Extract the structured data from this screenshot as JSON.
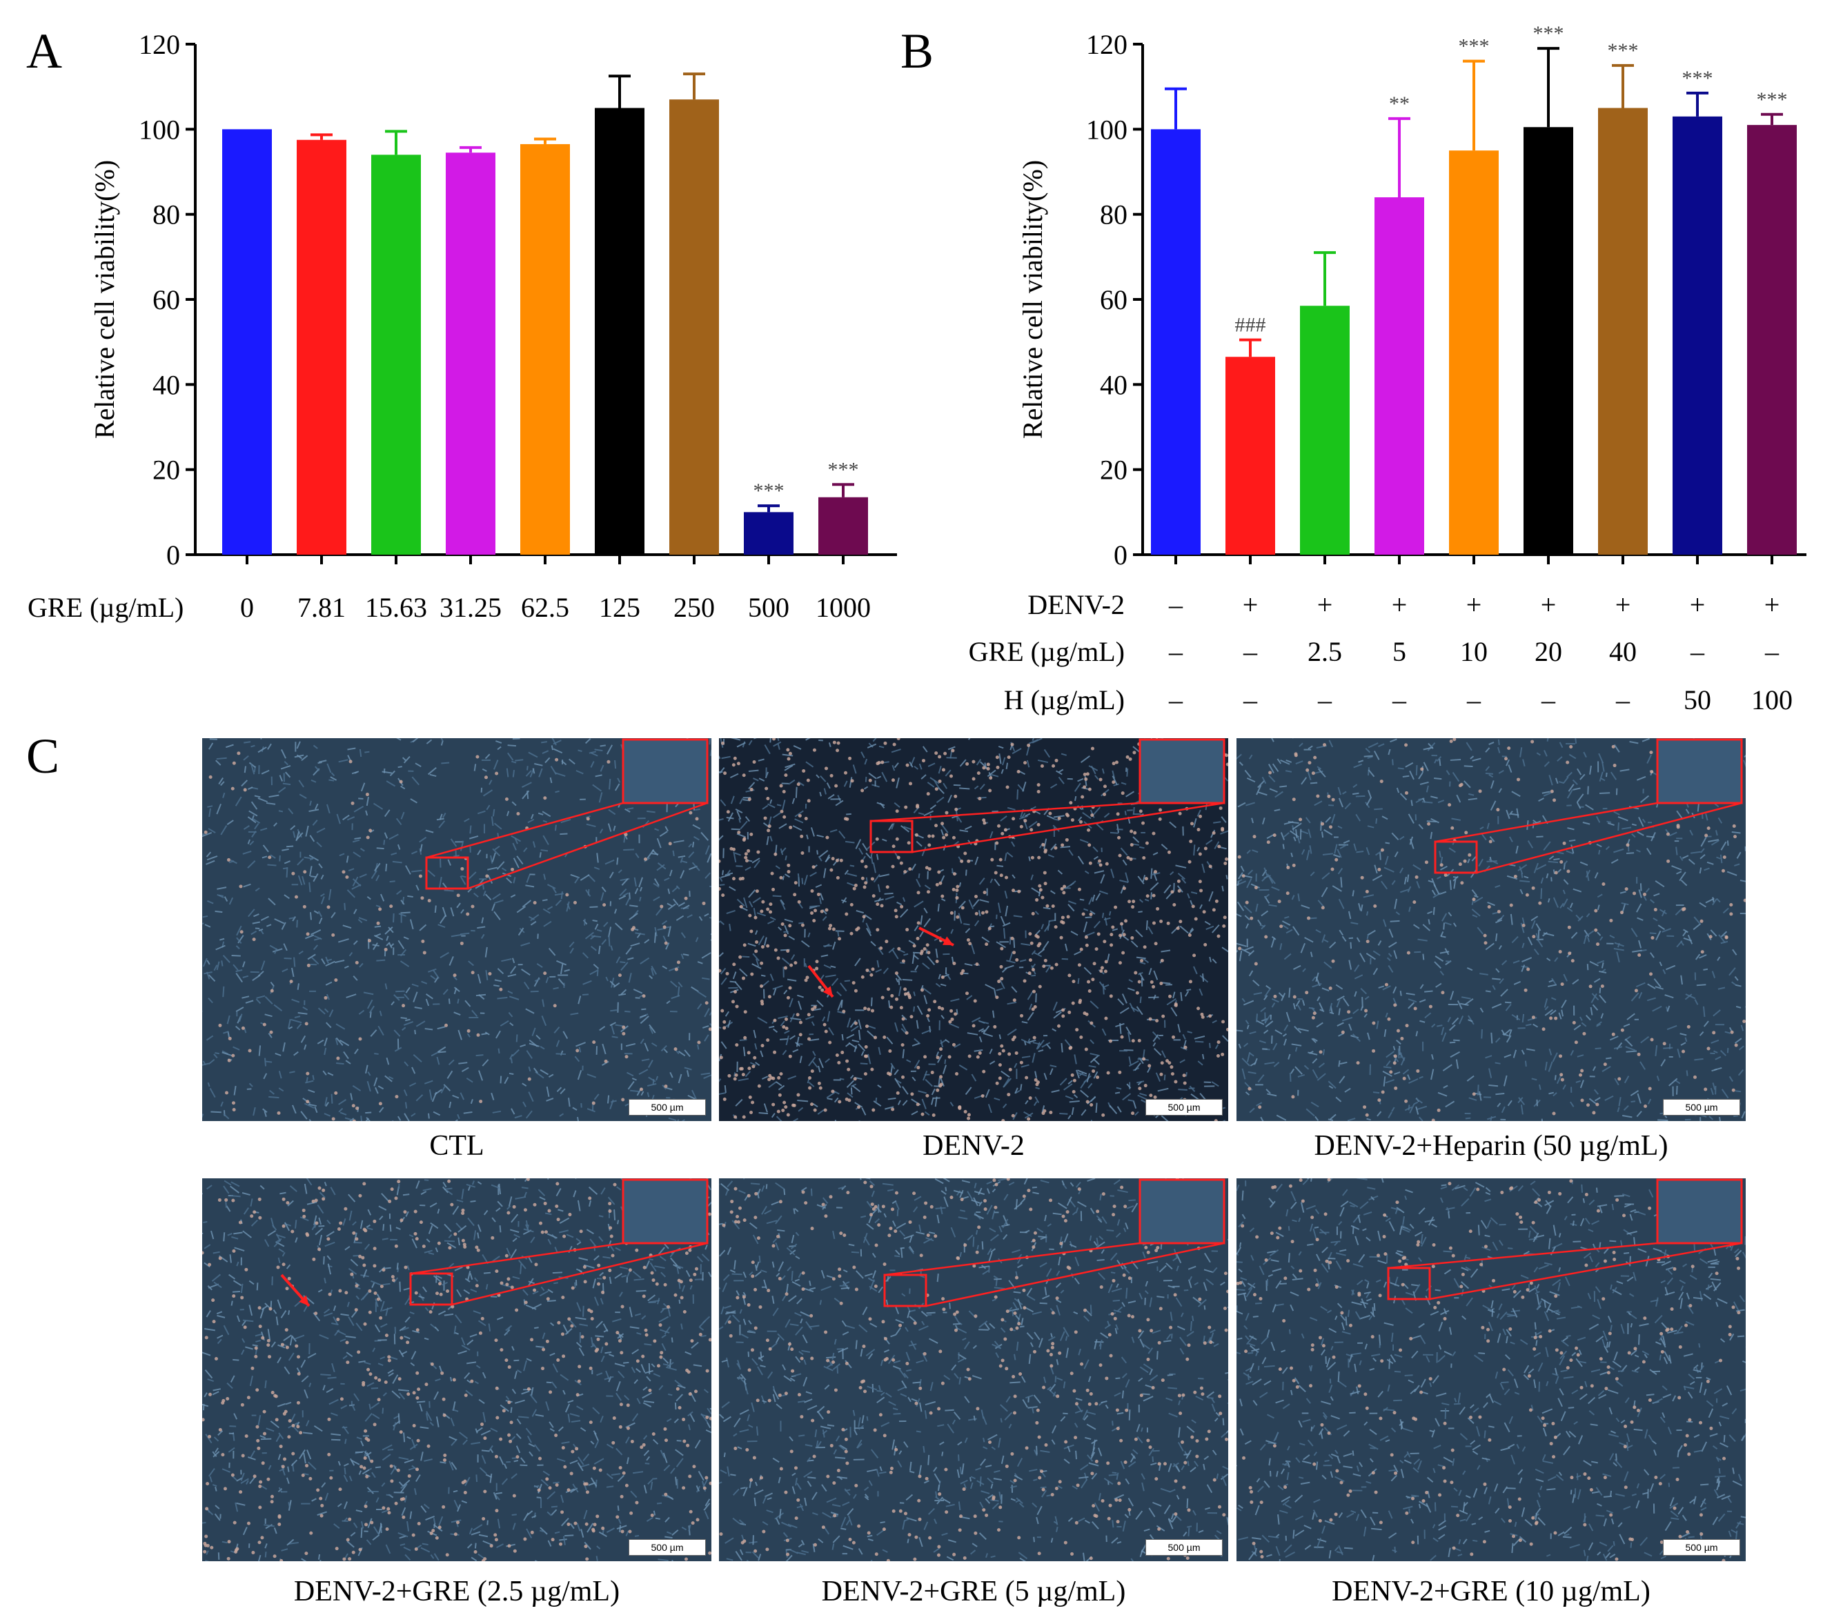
{
  "panels": {
    "a": "A",
    "b": "B",
    "c": "C"
  },
  "chart_data": [
    {
      "type": "bar",
      "panel": "A",
      "ylabel": "Relative cell viability(%)",
      "ylim": [
        0,
        120
      ],
      "yticks": [
        0,
        20,
        40,
        60,
        80,
        100,
        120
      ],
      "row_label": "GRE (µg/mL)",
      "categories": [
        "0",
        "7.81",
        "15.63",
        "31.25",
        "62.5",
        "125",
        "250",
        "500",
        "1000"
      ],
      "values": [
        100,
        97.5,
        94,
        94.5,
        96.5,
        105,
        107,
        10,
        13.5
      ],
      "errors": [
        0,
        1.2,
        5.5,
        1.2,
        1.2,
        7.5,
        6,
        1.5,
        3
      ],
      "colors": [
        "#1a1aff",
        "#ff1a1a",
        "#1ac41a",
        "#d21ae6",
        "#ff8c00",
        "#000000",
        "#a0621a",
        "#0a0a8c",
        "#6e0a50"
      ],
      "significance": [
        "",
        "",
        "",
        "",
        "",
        "",
        "",
        "***",
        "***"
      ]
    },
    {
      "type": "bar",
      "panel": "B",
      "ylabel": "Relative cell viability(%)",
      "ylim": [
        0,
        120
      ],
      "yticks": [
        0,
        20,
        40,
        60,
        80,
        100,
        120
      ],
      "values": [
        100,
        46.5,
        58.5,
        84,
        95,
        100.5,
        105,
        103,
        101
      ],
      "errors": [
        9.5,
        4,
        12.5,
        18.5,
        21,
        18.5,
        10,
        5.5,
        2.5
      ],
      "colors": [
        "#1a1aff",
        "#ff1a1a",
        "#1ac41a",
        "#d21ae6",
        "#ff8c00",
        "#000000",
        "#a0621a",
        "#0a0a8c",
        "#6e0a50"
      ],
      "significance": [
        "",
        "###",
        "",
        "**",
        "***",
        "***",
        "***",
        "***",
        "***"
      ],
      "condition_rows": [
        {
          "label": "DENV-2",
          "values": [
            "–",
            "+",
            "+",
            "+",
            "+",
            "+",
            "+",
            "+",
            "+"
          ]
        },
        {
          "label": "GRE (µg/mL)",
          "values": [
            "–",
            "–",
            "2.5",
            "5",
            "10",
            "20",
            "40",
            "–",
            "–"
          ]
        },
        {
          "label": "H (µg/mL)",
          "values": [
            "–",
            "–",
            "–",
            "–",
            "–",
            "–",
            "–",
            "50",
            "100"
          ]
        }
      ]
    }
  ],
  "micrographs": [
    {
      "caption": "CTL",
      "scale": "500 µm"
    },
    {
      "caption": "DENV-2",
      "scale": "500 µm"
    },
    {
      "caption": "DENV-2+Heparin (50 µg/mL)",
      "scale": "500 µm"
    },
    {
      "caption": "DENV-2+GRE  (2.5 µg/mL)",
      "scale": "500 µm"
    },
    {
      "caption": "DENV-2+GRE  (5 µg/mL)",
      "scale": "500 µm"
    },
    {
      "caption": "DENV-2+GRE (10 µg/mL)",
      "scale": "500 µm"
    }
  ]
}
